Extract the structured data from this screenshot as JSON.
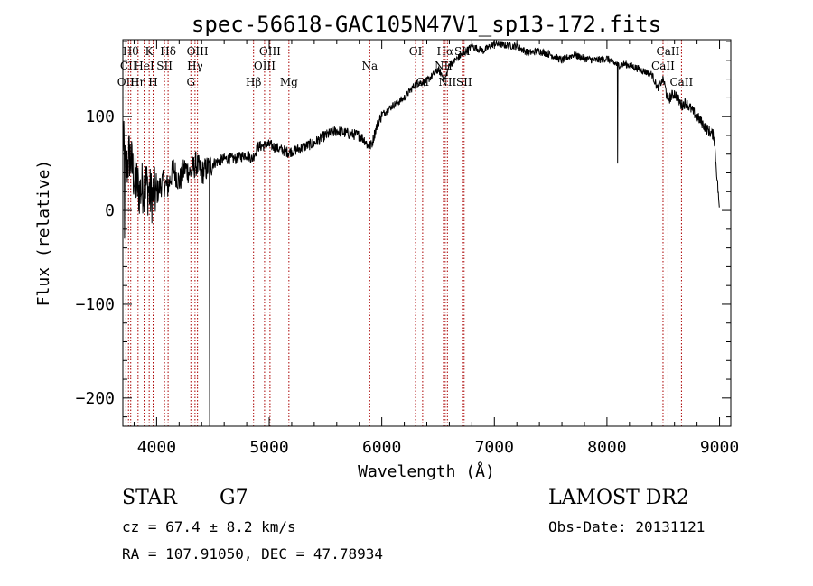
{
  "chart_data": {
    "type": "line",
    "title": "spec-56618-GAC105N47V1_sp13-172.fits",
    "xlabel": "Wavelength (Å)",
    "ylabel": "Flux (relative)",
    "xlim": [
      3700,
      9100
    ],
    "ylim": [
      -230,
      182
    ],
    "x_ticks": [
      4000,
      5000,
      6000,
      7000,
      8000,
      9000
    ],
    "x_tick_labels": [
      "4000",
      "5000",
      "6000",
      "7000",
      "8000",
      "9000"
    ],
    "y_ticks": [
      -200,
      -100,
      0,
      100
    ],
    "y_tick_labels": [
      "−200",
      "−100",
      "0",
      "100"
    ],
    "grid": false,
    "line_color": "#000000",
    "marker_color": "#aa0000",
    "spectrum_anchors": [
      [
        3700,
        80
      ],
      [
        3725,
        40
      ],
      [
        3760,
        60
      ],
      [
        3800,
        35
      ],
      [
        3850,
        20
      ],
      [
        3900,
        30
      ],
      [
        3950,
        15
      ],
      [
        4000,
        18
      ],
      [
        4050,
        30
      ],
      [
        4100,
        25
      ],
      [
        4150,
        45
      ],
      [
        4200,
        30
      ],
      [
        4250,
        45
      ],
      [
        4300,
        40
      ],
      [
        4350,
        50
      ],
      [
        4400,
        40
      ],
      [
        4450,
        45
      ],
      [
        4500,
        50
      ],
      [
        4600,
        55
      ],
      [
        4700,
        55
      ],
      [
        4800,
        60
      ],
      [
        4850,
        55
      ],
      [
        4900,
        68
      ],
      [
        5000,
        70
      ],
      [
        5100,
        65
      ],
      [
        5170,
        62
      ],
      [
        5250,
        65
      ],
      [
        5400,
        72
      ],
      [
        5500,
        80
      ],
      [
        5600,
        85
      ],
      [
        5700,
        82
      ],
      [
        5800,
        80
      ],
      [
        5850,
        75
      ],
      [
        5880,
        68
      ],
      [
        5910,
        70
      ],
      [
        5950,
        88
      ],
      [
        6000,
        102
      ],
      [
        6100,
        112
      ],
      [
        6200,
        120
      ],
      [
        6300,
        135
      ],
      [
        6400,
        138
      ],
      [
        6500,
        150
      ],
      [
        6563,
        140
      ],
      [
        6600,
        155
      ],
      [
        6700,
        165
      ],
      [
        6800,
        175
      ],
      [
        6900,
        170
      ],
      [
        7000,
        178
      ],
      [
        7100,
        176
      ],
      [
        7200,
        175
      ],
      [
        7300,
        168
      ],
      [
        7400,
        170
      ],
      [
        7500,
        166
      ],
      [
        7600,
        160
      ],
      [
        7700,
        166
      ],
      [
        7800,
        162
      ],
      [
        7900,
        160
      ],
      [
        8000,
        162
      ],
      [
        8050,
        158
      ],
      [
        8100,
        155
      ],
      [
        8150,
        156
      ],
      [
        8200,
        155
      ],
      [
        8300,
        150
      ],
      [
        8400,
        145
      ],
      [
        8450,
        130
      ],
      [
        8500,
        140
      ],
      [
        8542,
        118
      ],
      [
        8600,
        125
      ],
      [
        8662,
        112
      ],
      [
        8700,
        115
      ],
      [
        8800,
        100
      ],
      [
        8900,
        85
      ],
      [
        8950,
        80
      ],
      [
        9000,
        0
      ]
    ],
    "absorption_spikes": [
      {
        "x": 4470,
        "y": -230
      },
      {
        "x": 8095,
        "y": 50
      },
      {
        "x": 3715,
        "y": -30
      }
    ],
    "line_markers": [
      {
        "x": 3727,
        "label": "OII",
        "row": 3
      },
      {
        "x": 3750,
        "label": "CII",
        "row": 2
      },
      {
        "x": 3770,
        "label": "Hθ",
        "row": 1
      },
      {
        "x": 3835,
        "label": "Hη",
        "row": 3
      },
      {
        "x": 3889,
        "label": "HeI",
        "row": 2
      },
      {
        "x": 3934,
        "label": "K",
        "row": 1
      },
      {
        "x": 3969,
        "label": "H",
        "row": 3
      },
      {
        "x": 4070,
        "label": "SII",
        "row": 2
      },
      {
        "x": 4102,
        "label": "Hδ",
        "row": 1
      },
      {
        "x": 4304,
        "label": "G",
        "row": 3
      },
      {
        "x": 4341,
        "label": "Hγ",
        "row": 2
      },
      {
        "x": 4363,
        "label": "OIII",
        "row": 1
      },
      {
        "x": 4861,
        "label": "Hβ",
        "row": 3
      },
      {
        "x": 4959,
        "label": "OIII",
        "row": 2
      },
      {
        "x": 5007,
        "label": "OIII",
        "row": 1
      },
      {
        "x": 5175,
        "label": "Mg",
        "row": 3
      },
      {
        "x": 5893,
        "label": "Na",
        "row": 2
      },
      {
        "x": 6300,
        "label": "OI",
        "row": 1
      },
      {
        "x": 6363,
        "label": "OI",
        "row": 3
      },
      {
        "x": 6548,
        "label": "NII",
        "row": 2
      },
      {
        "x": 6563,
        "label": "Hα",
        "row": 1
      },
      {
        "x": 6583,
        "label": "NII",
        "row": 3
      },
      {
        "x": 6716,
        "label": "SII",
        "row": 1
      },
      {
        "x": 6731,
        "label": "SII",
        "row": 3
      },
      {
        "x": 8498,
        "label": "CaII",
        "row": 2
      },
      {
        "x": 8542,
        "label": "CaII",
        "row": 1
      },
      {
        "x": 8662,
        "label": "CaII",
        "row": 3
      }
    ]
  },
  "info": {
    "object_class": "STAR",
    "subclass": "G7",
    "redshift": "cz = 67.4 ± 8.2 km/s",
    "coords": "RA = 107.91050, DEC =  47.78934",
    "survey": "LAMOST DR2",
    "obs_date": "Obs-Date: 20131121"
  }
}
